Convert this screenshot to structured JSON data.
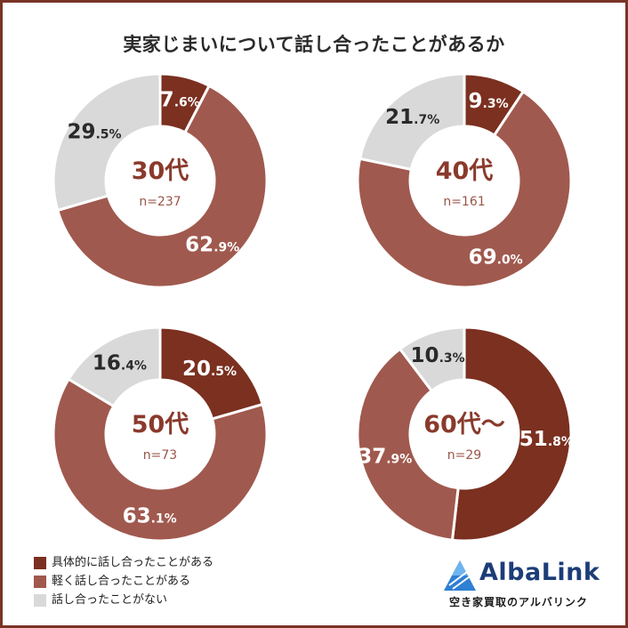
{
  "title": "実家じまいについて話し合ったことがあるか",
  "colors": {
    "concrete": "#7b3020",
    "light": "#a0594e",
    "none": "#d9d9d9",
    "accent_text": "#8a3a2c",
    "count_text": "#9b5548"
  },
  "legend": {
    "items": [
      {
        "label": "具体的に話し合ったことがある",
        "color": "#7b3020"
      },
      {
        "label": "軽く話し合ったことがある",
        "color": "#a0594e"
      },
      {
        "label": "話し合ったことがない",
        "color": "#d9d9d9"
      }
    ]
  },
  "logo": {
    "name": "AlbaLink",
    "tagline": "空き家買取のアルバリンク",
    "icon": "triangle-logo-icon"
  },
  "chart_data": [
    {
      "type": "pie",
      "group": "30代",
      "n": "n=237",
      "categories": [
        "具体的に話し合ったことがある",
        "軽く話し合ったことがある",
        "話し合ったことがない"
      ],
      "values": [
        7.6,
        62.9,
        29.5
      ],
      "labels": [
        {
          "int": "7",
          "dec": ".6%"
        },
        {
          "int": "62",
          "dec": ".9%"
        },
        {
          "int": "29",
          "dec": ".5%"
        }
      ]
    },
    {
      "type": "pie",
      "group": "40代",
      "n": "n=161",
      "categories": [
        "具体的に話し合ったことがある",
        "軽く話し合ったことがある",
        "話し合ったことがない"
      ],
      "values": [
        9.3,
        69.0,
        21.7
      ],
      "labels": [
        {
          "int": "9",
          "dec": ".3%"
        },
        {
          "int": "69",
          "dec": ".0%"
        },
        {
          "int": "21",
          "dec": ".7%"
        }
      ]
    },
    {
      "type": "pie",
      "group": "50代",
      "n": "n=73",
      "categories": [
        "具体的に話し合ったことがある",
        "軽く話し合ったことがある",
        "話し合ったことがない"
      ],
      "values": [
        20.5,
        63.1,
        16.4
      ],
      "labels": [
        {
          "int": "20",
          "dec": ".5%"
        },
        {
          "int": "63",
          "dec": ".1%"
        },
        {
          "int": "16",
          "dec": ".4%"
        }
      ]
    },
    {
      "type": "pie",
      "group": "60代～",
      "n": "n=29",
      "categories": [
        "具体的に話し合ったことがある",
        "軽く話し合ったことがある",
        "話し合ったことがない"
      ],
      "values": [
        51.8,
        37.9,
        10.3
      ],
      "labels": [
        {
          "int": "51",
          "dec": ".8%"
        },
        {
          "int": "37",
          "dec": ".9%"
        },
        {
          "int": "10",
          "dec": ".3%"
        }
      ]
    }
  ]
}
